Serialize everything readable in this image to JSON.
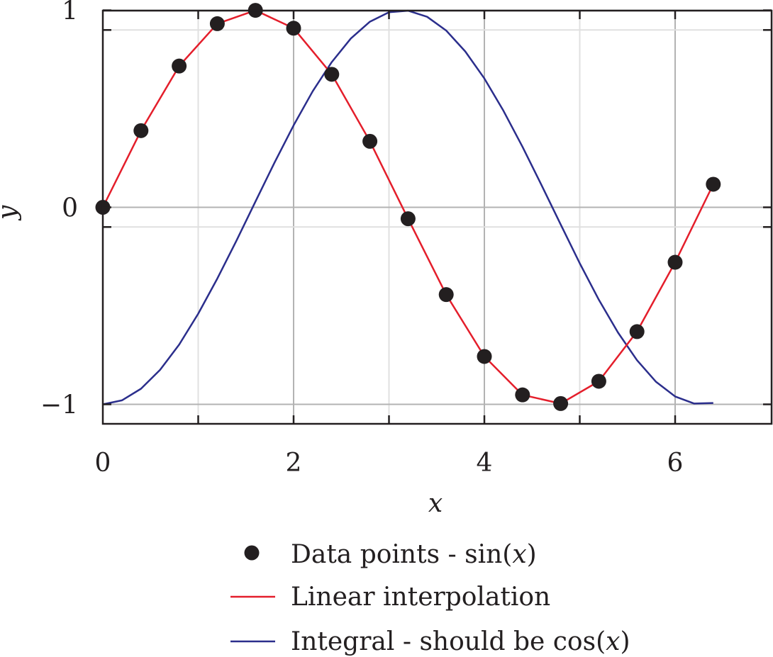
{
  "chart_data": {
    "type": "line",
    "xlabel": "x",
    "ylabel": "y",
    "xlim": [
      0,
      7
    ],
    "ylim": [
      -1.1,
      1.0
    ],
    "xticks": [
      0,
      1,
      2,
      3,
      4,
      5,
      6,
      7
    ],
    "xtick_labels": [
      {
        "value": 0,
        "label": "0"
      },
      {
        "value": 2,
        "label": "2"
      },
      {
        "value": 4,
        "label": "4"
      },
      {
        "value": 6,
        "label": "6"
      }
    ],
    "ytick_labels": [
      {
        "value": 1,
        "label": "1"
      },
      {
        "value": 0,
        "label": "0"
      },
      {
        "value": -1,
        "label": "−1"
      }
    ],
    "grid": true,
    "legend_position": "bottom",
    "colors": {
      "points": "#231f20",
      "interp": "#e41e2b",
      "integral": "#2b2e8c",
      "grid": "#b3b3b3",
      "axes": "#231f20"
    },
    "series": [
      {
        "name": "Data points - sin(x)",
        "name_parts": [
          "Data points - sin(",
          "x",
          ")"
        ],
        "kind": "points",
        "x": [
          0,
          0.4,
          0.8,
          1.2,
          1.6,
          2.0,
          2.4,
          2.8,
          3.2,
          3.6,
          4.0,
          4.4,
          4.8,
          5.2,
          5.6,
          6.0,
          6.4
        ],
        "y": [
          0,
          0.389,
          0.717,
          0.932,
          0.9996,
          0.909,
          0.675,
          0.335,
          -0.058,
          -0.443,
          -0.757,
          -0.952,
          -0.996,
          -0.883,
          -0.631,
          -0.279,
          0.117
        ]
      },
      {
        "name": "Linear interpolation",
        "name_parts": [
          "Linear interpolation"
        ],
        "kind": "line",
        "x": [
          0,
          0.4,
          0.8,
          1.2,
          1.6,
          2.0,
          2.4,
          2.8,
          3.2,
          3.6,
          4.0,
          4.4,
          4.8,
          5.2,
          5.6,
          6.0,
          6.4
        ],
        "y": [
          0,
          0.389,
          0.717,
          0.932,
          0.9996,
          0.909,
          0.675,
          0.335,
          -0.058,
          -0.443,
          -0.757,
          -0.952,
          -0.996,
          -0.883,
          -0.631,
          -0.279,
          0.117
        ]
      },
      {
        "name": "Integral - should be cos(x)",
        "name_parts": [
          "Integral - should be cos(",
          "x",
          ")"
        ],
        "kind": "line",
        "x": [
          0,
          0.2,
          0.4,
          0.6,
          0.8,
          1.0,
          1.2,
          1.4,
          1.6,
          1.8,
          2.0,
          2.2,
          2.4,
          2.6,
          2.8,
          3.0,
          3.2,
          3.4,
          3.6,
          3.8,
          4.0,
          4.2,
          4.4,
          4.6,
          4.8,
          5.0,
          5.2,
          5.4,
          5.6,
          5.8,
          6.0,
          6.2,
          6.4
        ],
        "y": [
          -1.0,
          -0.98,
          -0.921,
          -0.825,
          -0.697,
          -0.54,
          -0.362,
          -0.17,
          0.029,
          0.227,
          0.416,
          0.589,
          0.737,
          0.857,
          0.942,
          0.99,
          0.998,
          0.967,
          0.897,
          0.791,
          0.654,
          0.49,
          0.307,
          0.112,
          -0.087,
          -0.284,
          -0.469,
          -0.635,
          -0.776,
          -0.886,
          -0.96,
          -0.996,
          -0.993
        ]
      }
    ]
  }
}
